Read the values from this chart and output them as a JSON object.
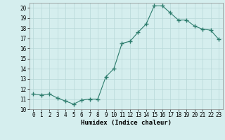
{
  "x": [
    0,
    1,
    2,
    3,
    4,
    5,
    6,
    7,
    8,
    9,
    10,
    11,
    12,
    13,
    14,
    15,
    16,
    17,
    18,
    19,
    20,
    21,
    22,
    23
  ],
  "y": [
    11.5,
    11.4,
    11.5,
    11.1,
    10.8,
    10.5,
    10.9,
    11.0,
    11.0,
    13.2,
    14.0,
    16.5,
    16.7,
    17.6,
    18.4,
    20.2,
    20.2,
    19.5,
    18.8,
    18.8,
    18.2,
    17.9,
    17.8,
    16.9
  ],
  "line_color": "#2e7d6e",
  "marker": "+",
  "marker_size": 4,
  "bg_color": "#d5eeee",
  "grid_color": "#b8d8d8",
  "xlabel": "Humidex (Indice chaleur)",
  "ylim": [
    10,
    20.5
  ],
  "xlim": [
    -0.5,
    23.5
  ],
  "yticks": [
    10,
    11,
    12,
    13,
    14,
    15,
    16,
    17,
    18,
    19,
    20
  ],
  "xticks": [
    0,
    1,
    2,
    3,
    4,
    5,
    6,
    7,
    8,
    9,
    10,
    11,
    12,
    13,
    14,
    15,
    16,
    17,
    18,
    19,
    20,
    21,
    22,
    23
  ],
  "tick_fontsize": 5.5,
  "xlabel_fontsize": 6.5
}
